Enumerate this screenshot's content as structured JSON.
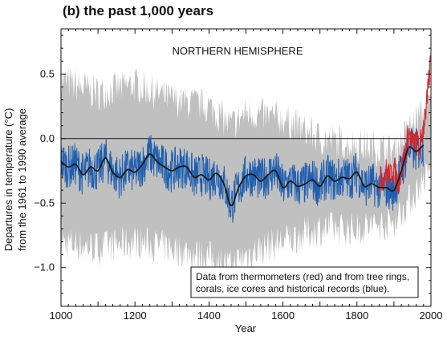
{
  "title": "(b) the past 1,000 years",
  "chart_data": {
    "type": "line",
    "region_label": "NORTHERN HEMISPHERE",
    "xlabel": "Year",
    "ylabel_line1": "Departures in temperature (°C)",
    "ylabel_line2": "from the 1961 to 1990 average",
    "xlim": [
      1000,
      2000
    ],
    "ylim": [
      -1.3,
      0.85
    ],
    "xticks": [
      1000,
      1200,
      1400,
      1600,
      1800,
      2000
    ],
    "xtick_labels": [
      "1000",
      "1200",
      "1400",
      "1600",
      "1800",
      "2000"
    ],
    "yticks": [
      0.5,
      0.0,
      -0.5,
      -1.0
    ],
    "ytick_labels": [
      "0.5",
      "0.0",
      "−0.5",
      "−1.0"
    ],
    "reference_line_y": 0.0,
    "annotation_line1": "Data from thermometers (red) and from tree rings,",
    "annotation_line2": "corals, ice cores and historical records (blue).",
    "colors": {
      "uncertainty": "#c0c0c0",
      "proxy": "#1f5fb0",
      "smooth": "#1a1a1a",
      "thermometer": "#d6262b"
    },
    "smoothed_series": {
      "x": [
        1000,
        1020,
        1040,
        1060,
        1080,
        1100,
        1120,
        1140,
        1160,
        1180,
        1200,
        1220,
        1240,
        1260,
        1280,
        1300,
        1320,
        1340,
        1360,
        1380,
        1400,
        1420,
        1440,
        1460,
        1480,
        1500,
        1520,
        1540,
        1560,
        1580,
        1600,
        1620,
        1640,
        1660,
        1680,
        1700,
        1720,
        1740,
        1760,
        1780,
        1800,
        1820,
        1840,
        1860,
        1880,
        1900,
        1920,
        1940,
        1960,
        1980
      ],
      "y": [
        -0.18,
        -0.22,
        -0.2,
        -0.28,
        -0.22,
        -0.25,
        -0.15,
        -0.26,
        -0.3,
        -0.24,
        -0.26,
        -0.2,
        -0.12,
        -0.18,
        -0.22,
        -0.25,
        -0.22,
        -0.22,
        -0.3,
        -0.28,
        -0.32,
        -0.27,
        -0.35,
        -0.52,
        -0.38,
        -0.29,
        -0.28,
        -0.33,
        -0.28,
        -0.25,
        -0.38,
        -0.33,
        -0.37,
        -0.35,
        -0.32,
        -0.37,
        -0.29,
        -0.33,
        -0.3,
        -0.31,
        -0.26,
        -0.37,
        -0.35,
        -0.38,
        -0.38,
        -0.4,
        -0.25,
        -0.07,
        -0.1,
        -0.05
      ]
    },
    "thermometer_series": {
      "x": [
        1860,
        1870,
        1880,
        1890,
        1900,
        1910,
        1920,
        1930,
        1940,
        1950,
        1960,
        1970,
        1980,
        1990,
        1998
      ],
      "y": [
        -0.35,
        -0.3,
        -0.25,
        -0.3,
        -0.22,
        -0.35,
        -0.25,
        -0.12,
        0.05,
        -0.05,
        -0.02,
        -0.08,
        0.1,
        0.3,
        0.55
      ]
    },
    "uncertainty_band": {
      "x": [
        1000,
        1100,
        1200,
        1300,
        1400,
        1460,
        1500,
        1600,
        1700,
        1800,
        1900,
        2000
      ],
      "upper": [
        0.45,
        0.35,
        0.42,
        0.3,
        0.25,
        0.1,
        0.2,
        0.15,
        0.0,
        -0.05,
        -0.1,
        0.3
      ],
      "lower": [
        -0.8,
        -0.85,
        -0.8,
        -0.85,
        -0.92,
        -1.0,
        -0.9,
        -0.8,
        -0.7,
        -0.7,
        -0.65,
        -0.25
      ]
    }
  }
}
